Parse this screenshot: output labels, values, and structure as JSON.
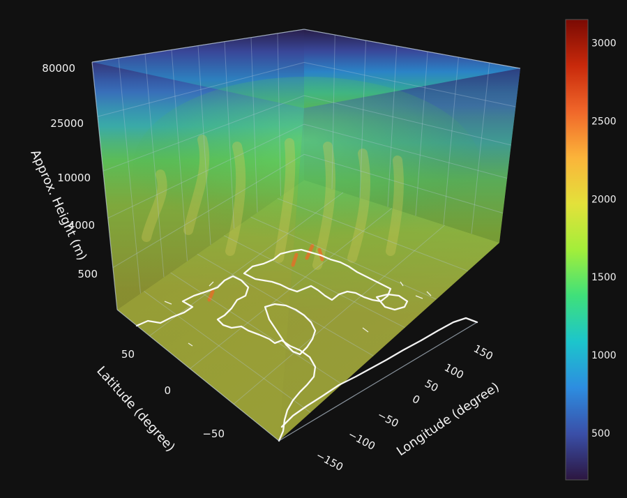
{
  "chart_data": {
    "type": "volume-3d",
    "title": "",
    "axes": {
      "z": {
        "label": "Approx. Height (m)",
        "ticks": [
          "80000",
          "25000",
          "10000",
          "4000",
          "500"
        ]
      },
      "lat": {
        "label": "Latitude (degree)",
        "ticks": [
          "50",
          "0",
          "−50"
        ]
      },
      "lon": {
        "label": "Longitude (degree)",
        "ticks": [
          "150",
          "100",
          "50",
          "0",
          "−50",
          "−100",
          "−150"
        ]
      }
    },
    "colorbar": {
      "range": [
        200,
        3150
      ],
      "ticks": [
        "3000",
        "2500",
        "2000",
        "1500",
        "1000",
        "500"
      ],
      "tick_values": [
        3000,
        2500,
        2000,
        1500,
        1000,
        500
      ],
      "colorscale": [
        "#2c1640",
        "#3a4fa8",
        "#2d8de0",
        "#1cc5cc",
        "#3fe07a",
        "#a3ee3a",
        "#e3e13a",
        "#fbb43a",
        "#f0672a",
        "#c8290b",
        "#7a0a03"
      ]
    },
    "colors": {
      "background": "#111111",
      "volume_low": "#7d8a2e",
      "volume_mid": "#57c94a",
      "volume_top": "#2b2352",
      "coastline": "#ffffff"
    }
  }
}
